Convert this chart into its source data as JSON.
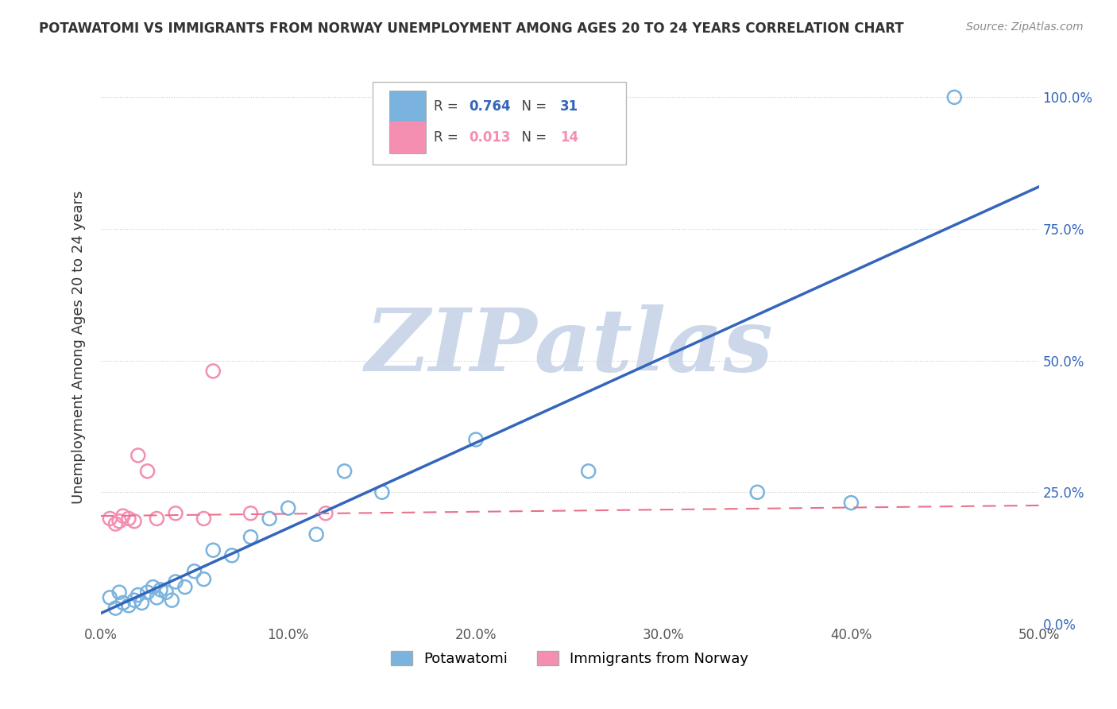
{
  "title": "POTAWATOMI VS IMMIGRANTS FROM NORWAY UNEMPLOYMENT AMONG AGES 20 TO 24 YEARS CORRELATION CHART",
  "source": "Source: ZipAtlas.com",
  "ylabel": "Unemployment Among Ages 20 to 24 years",
  "xlim": [
    0.0,
    0.5
  ],
  "ylim": [
    0.0,
    1.05
  ],
  "blue_scatter_x": [
    0.005,
    0.008,
    0.01,
    0.012,
    0.015,
    0.018,
    0.02,
    0.022,
    0.025,
    0.028,
    0.03,
    0.032,
    0.035,
    0.038,
    0.04,
    0.045,
    0.05,
    0.055,
    0.06,
    0.07,
    0.08,
    0.09,
    0.1,
    0.115,
    0.13,
    0.15,
    0.2,
    0.26,
    0.35,
    0.4,
    0.455
  ],
  "blue_scatter_y": [
    0.05,
    0.03,
    0.06,
    0.04,
    0.035,
    0.045,
    0.055,
    0.04,
    0.06,
    0.07,
    0.05,
    0.065,
    0.06,
    0.045,
    0.08,
    0.07,
    0.1,
    0.085,
    0.14,
    0.13,
    0.165,
    0.2,
    0.22,
    0.17,
    0.29,
    0.25,
    0.35,
    0.29,
    0.25,
    0.23,
    1.0
  ],
  "pink_scatter_x": [
    0.005,
    0.008,
    0.01,
    0.012,
    0.015,
    0.018,
    0.02,
    0.025,
    0.03,
    0.04,
    0.055,
    0.06,
    0.12,
    0.08
  ],
  "pink_scatter_y": [
    0.2,
    0.19,
    0.195,
    0.205,
    0.2,
    0.195,
    0.32,
    0.29,
    0.2,
    0.21,
    0.2,
    0.48,
    0.21,
    0.21
  ],
  "blue_line_x": [
    0.0,
    0.5
  ],
  "blue_line_y": [
    0.02,
    0.83
  ],
  "pink_line_x": [
    0.0,
    0.5
  ],
  "pink_line_y": [
    0.205,
    0.225
  ],
  "blue_color": "#7ab3de",
  "pink_color": "#f48fb1",
  "blue_line_color": "#3366bb",
  "pink_line_color": "#e8728a",
  "watermark_text": "ZIPatlas",
  "watermark_color": "#ccd8ea",
  "grid_color": "#cccccc",
  "background_color": "#ffffff",
  "legend_r1": "0.764",
  "legend_n1": "31",
  "legend_r2": "0.013",
  "legend_n2": "14",
  "legend_val_color_blue": "#3366bb",
  "legend_val_color_pink": "#f48fb1",
  "right_tick_color": "#3366bb"
}
